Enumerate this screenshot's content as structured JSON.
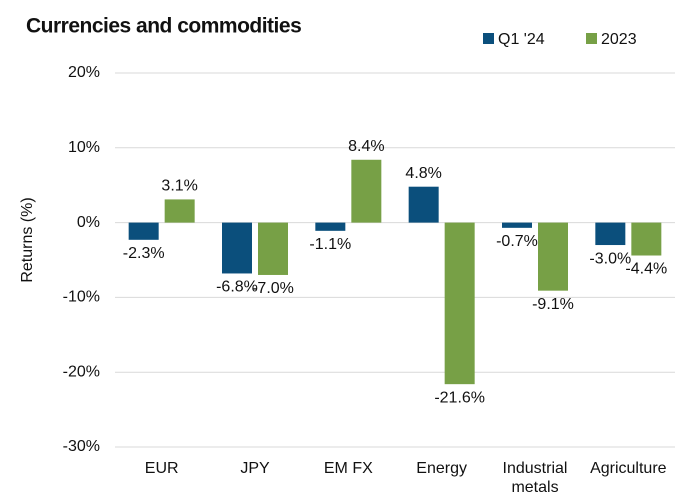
{
  "chart_data": {
    "type": "bar",
    "title": "Currencies and commodities",
    "y_label": "Returns (%)",
    "categories": [
      "EUR",
      "JPY",
      "EM FX",
      "Energy",
      "Industrial metals",
      "Agriculture"
    ],
    "series": [
      {
        "name": "Q1 '24",
        "color": "#0b4f7c",
        "values": [
          -2.3,
          -6.8,
          -1.1,
          4.8,
          -0.7,
          -3.0
        ],
        "value_labels": [
          "-2.3%",
          "-6.8%",
          "-1.1%",
          "4.8%",
          "-0.7%",
          "-3.0%"
        ]
      },
      {
        "name": "2023",
        "color": "#77a046",
        "values": [
          3.1,
          -7.0,
          8.4,
          -21.6,
          -9.1,
          -4.4
        ],
        "value_labels": [
          "3.1%",
          "-7.0%",
          "8.4%",
          "-21.6%",
          "-9.1%",
          "-4.4%"
        ]
      }
    ],
    "ylim": [
      -30,
      20
    ],
    "yticks": [
      {
        "value": -30,
        "label": "-30%"
      },
      {
        "value": -20,
        "label": "-20%"
      },
      {
        "value": -10,
        "label": "-10%"
      },
      {
        "value": 0,
        "label": "0%"
      },
      {
        "value": 10,
        "label": "10%"
      },
      {
        "value": 20,
        "label": "20%"
      }
    ],
    "grid": true,
    "legend": "top-right"
  }
}
